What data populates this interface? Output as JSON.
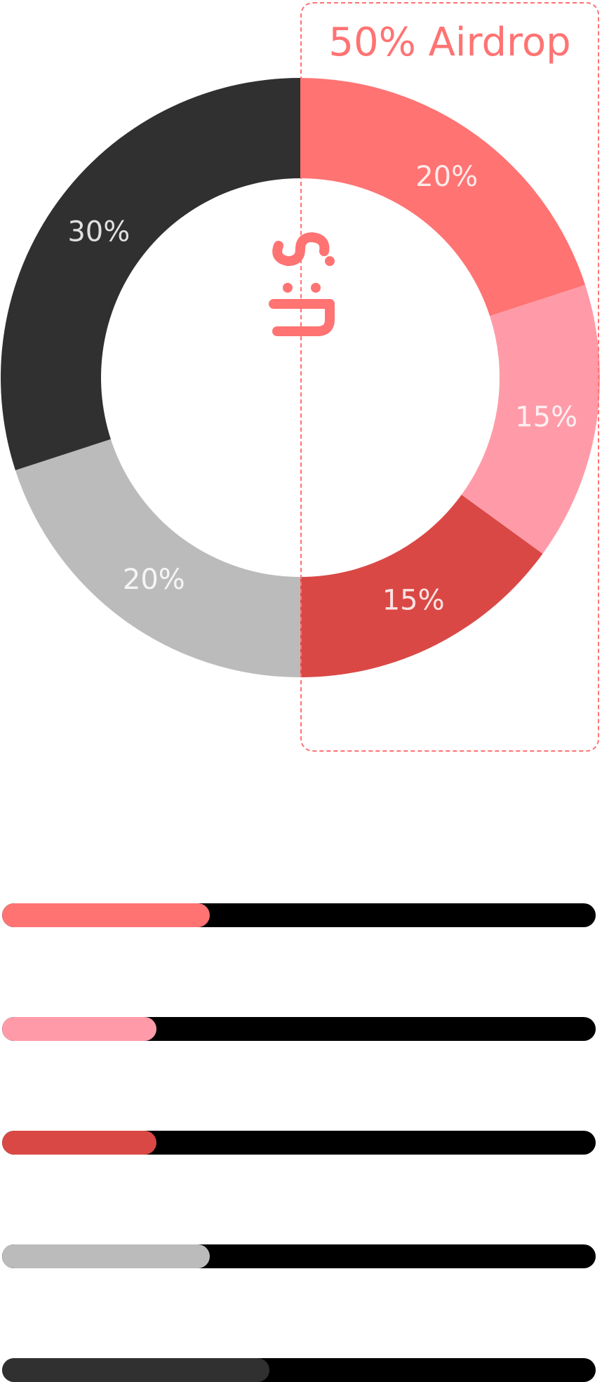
{
  "chart_data": {
    "type": "donut",
    "slices": [
      {
        "label": "20%",
        "value": 20,
        "color": "#ff7373"
      },
      {
        "label": "15%",
        "value": 15,
        "color": "#ff9ba8"
      },
      {
        "label": "15%",
        "value": 15,
        "color": "#da4845"
      },
      {
        "label": "20%",
        "value": 20,
        "color": "#bbbbbb"
      },
      {
        "label": "30%",
        "value": 30,
        "color": "#303030"
      }
    ],
    "highlight": {
      "label": "50% Airdrop",
      "value": 50,
      "color": "#ff7373"
    },
    "center_logo": {
      "icon": "uis-logo-icon",
      "color": "#ff7373"
    }
  },
  "progress_bars": [
    {
      "fill": 0.35,
      "color": "#ff7373"
    },
    {
      "fill": 0.26,
      "color": "#ff9ba8"
    },
    {
      "fill": 0.26,
      "color": "#da4845"
    },
    {
      "fill": 0.35,
      "color": "#bbbbbb"
    },
    {
      "fill": 0.45,
      "color": "#303030"
    }
  ],
  "track_color": "#000000"
}
